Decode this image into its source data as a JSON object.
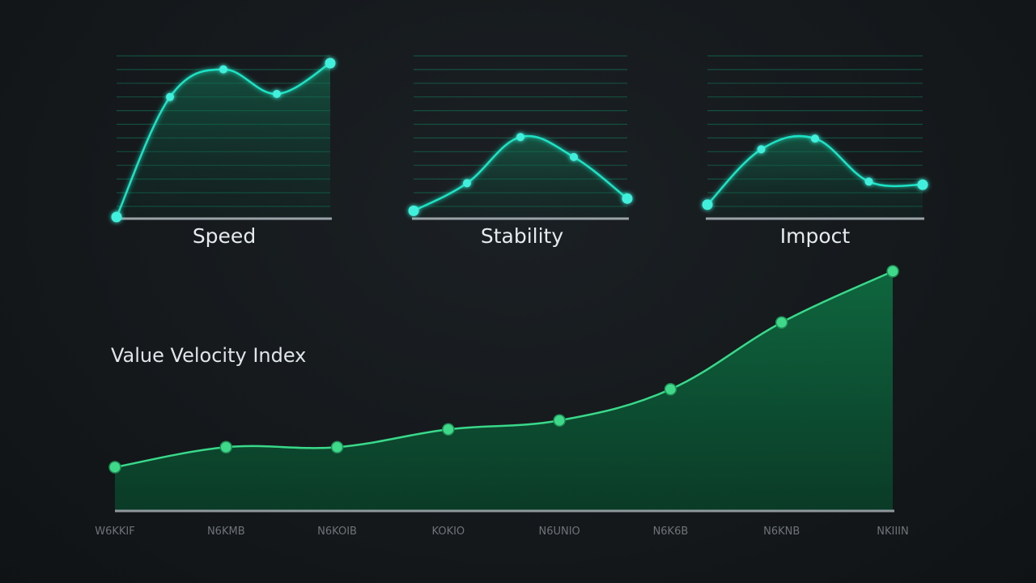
{
  "chart_data": [
    {
      "type": "line",
      "title": "Speed",
      "series": [
        {
          "values": [
            0,
            0.78,
            0.96,
            0.8,
            1.0
          ]
        }
      ],
      "ylim": [
        0,
        1
      ],
      "grid": true,
      "colors": {
        "line": "#1ee3c4",
        "fill": "#0f6b4f"
      }
    },
    {
      "type": "line",
      "title": "Stability",
      "series": [
        {
          "values": [
            0.04,
            0.22,
            0.52,
            0.39,
            0.12
          ]
        }
      ],
      "ylim": [
        0,
        1
      ],
      "grid": true,
      "colors": {
        "line": "#1ee3c4",
        "fill": "#0f6b4f"
      }
    },
    {
      "type": "line",
      "title": "Impoct",
      "series": [
        {
          "values": [
            0.08,
            0.44,
            0.51,
            0.23,
            0.21
          ]
        }
      ],
      "ylim": [
        0,
        1
      ],
      "grid": true,
      "colors": {
        "line": "#1ee3c4",
        "fill": "#0f6b4f"
      }
    },
    {
      "type": "area",
      "title": "Value Velocity Index",
      "categories": [
        "W6KKIF",
        "N6KMB",
        "N6KOIB",
        "KOKIO",
        "N6UNIO",
        "N6K6B",
        "N6KNB",
        "NKIIIN"
      ],
      "series": [
        {
          "values": [
            12,
            21,
            21,
            29,
            33,
            47,
            77,
            100
          ]
        }
      ],
      "ylim": [
        0,
        100
      ],
      "grid": false,
      "colors": {
        "line": "#39d98a",
        "fill": "#0c5a36"
      }
    }
  ]
}
